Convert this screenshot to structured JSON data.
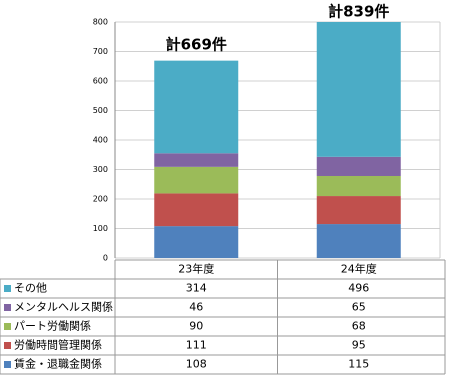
{
  "chart_data": {
    "type": "stacked-bar",
    "categories": [
      "23年度",
      "24年度"
    ],
    "series": [
      {
        "name": "賃金・退職金関係",
        "color": "#4f81bd",
        "values": [
          108,
          115
        ]
      },
      {
        "name": "労働時間管理関係",
        "color": "#c0504d",
        "values": [
          111,
          95
        ]
      },
      {
        "name": "パート労働関係",
        "color": "#9bbb59",
        "values": [
          90,
          68
        ]
      },
      {
        "name": "メンタルヘルス関係",
        "color": "#8064a2",
        "values": [
          46,
          65
        ]
      },
      {
        "name": "その他",
        "color": "#4bacc6",
        "values": [
          314,
          496
        ]
      }
    ],
    "annotations": [
      "計669件",
      "計839件"
    ],
    "ylim": [
      0,
      800
    ],
    "yticks": [
      0,
      100,
      200,
      300,
      400,
      500,
      600,
      700,
      800
    ],
    "grid": true
  }
}
